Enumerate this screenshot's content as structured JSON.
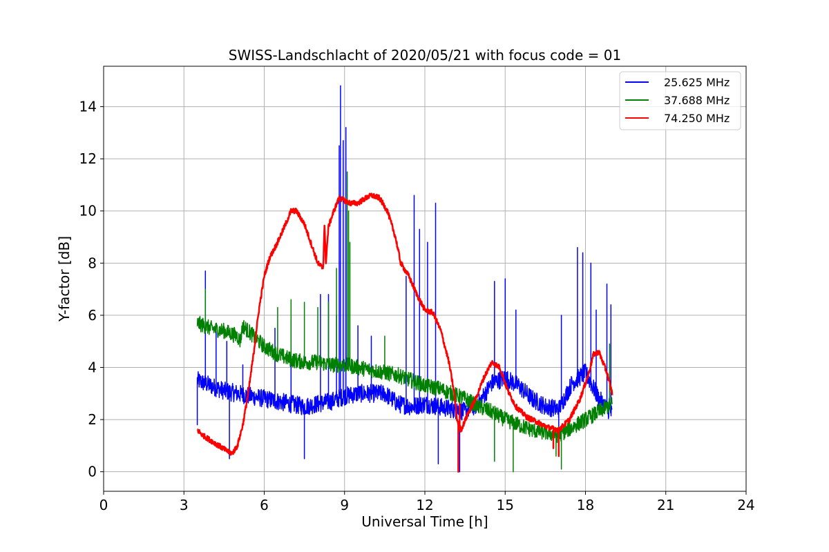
{
  "chart_data": {
    "type": "line",
    "title": "SWISS-Landschlacht of 2020/05/21 with focus code = 01",
    "xlabel": "Universal Time [h]",
    "ylabel": "Y-factor [dB]",
    "xlim": [
      0,
      24
    ],
    "ylim": [
      -0.75,
      15.55
    ],
    "x_ticks": [
      0,
      3,
      6,
      9,
      12,
      15,
      18,
      21,
      24
    ],
    "x_tick_labels": [
      "0",
      "3",
      "6",
      "9",
      "12",
      "15",
      "18",
      "21",
      "24"
    ],
    "y_ticks": [
      0,
      2,
      4,
      6,
      8,
      10,
      12,
      14
    ],
    "y_tick_labels": [
      "0",
      "2",
      "4",
      "6",
      "8",
      "10",
      "12",
      "14"
    ],
    "grid": true,
    "legend_position": "top-right",
    "series": [
      {
        "name": "25.625 MHz",
        "color": "#0000ff",
        "x": [
          3.5,
          4,
          4.5,
          5,
          5.5,
          6,
          6.5,
          7,
          7.5,
          8,
          8.5,
          9,
          9.5,
          10,
          10.5,
          11,
          11.5,
          12,
          12.5,
          13,
          13.5,
          14,
          14.5,
          15,
          15.5,
          16,
          16.5,
          17,
          17.5,
          18,
          18.5,
          19
        ],
        "y": [
          3.5,
          3.3,
          3.1,
          3.0,
          2.9,
          2.8,
          2.7,
          2.6,
          2.5,
          2.6,
          2.7,
          2.9,
          3.0,
          3.0,
          3.0,
          2.6,
          2.5,
          2.6,
          2.5,
          2.4,
          2.3,
          2.6,
          3.4,
          3.6,
          3.3,
          2.8,
          2.5,
          2.4,
          3.4,
          3.8,
          2.8,
          2.2
        ],
        "spikes": [
          [
            3.5,
            1.8
          ],
          [
            3.8,
            7.7
          ],
          [
            4.2,
            5.6
          ],
          [
            4.6,
            5.0
          ],
          [
            4.7,
            0.5
          ],
          [
            5.2,
            4.1
          ],
          [
            6.4,
            5.5
          ],
          [
            7.0,
            5.8
          ],
          [
            7.5,
            0.5
          ],
          [
            8.1,
            6.8
          ],
          [
            8.4,
            6.8
          ],
          [
            8.7,
            6.0
          ],
          [
            8.8,
            12.5
          ],
          [
            8.85,
            14.8
          ],
          [
            8.95,
            12.7
          ],
          [
            9.05,
            13.2
          ],
          [
            9.5,
            5.6
          ],
          [
            10.0,
            5.2
          ],
          [
            11.3,
            7.5
          ],
          [
            11.6,
            10.6
          ],
          [
            11.8,
            9.3
          ],
          [
            12.1,
            8.8
          ],
          [
            12.4,
            10.3
          ],
          [
            12.5,
            0.3
          ],
          [
            13.2,
            2.6
          ],
          [
            13.3,
            0.0
          ],
          [
            14.6,
            7.3
          ],
          [
            15.0,
            7.4
          ],
          [
            15.4,
            6.2
          ],
          [
            17.0,
            0.8
          ],
          [
            17.1,
            6.0
          ],
          [
            17.7,
            8.6
          ],
          [
            17.9,
            8.4
          ],
          [
            18.2,
            8.0
          ],
          [
            18.4,
            6.2
          ],
          [
            18.8,
            7.2
          ],
          [
            18.95,
            6.4
          ]
        ]
      },
      {
        "name": "37.688 MHz",
        "color": "#008000",
        "x": [
          3.5,
          4,
          4.5,
          5,
          5.1,
          5.2,
          5.5,
          6,
          6.5,
          7,
          7.5,
          8,
          8.5,
          9,
          9.5,
          10,
          10.5,
          11,
          11.5,
          12,
          12.5,
          13,
          13.5,
          14,
          14.5,
          15,
          15.5,
          16,
          16.5,
          17,
          17.5,
          18,
          18.5,
          19
        ],
        "y": [
          5.7,
          5.5,
          5.4,
          5.2,
          5.0,
          5.6,
          5.3,
          4.8,
          4.5,
          4.3,
          4.2,
          4.2,
          4.1,
          4.1,
          4.0,
          3.9,
          3.8,
          3.7,
          3.5,
          3.3,
          3.2,
          3.0,
          2.8,
          2.5,
          2.3,
          2.0,
          1.8,
          1.6,
          1.5,
          1.4,
          1.7,
          2.0,
          2.3,
          2.6
        ],
        "spikes": [
          [
            3.8,
            7.0
          ],
          [
            6.5,
            6.3
          ],
          [
            7.0,
            6.6
          ],
          [
            7.5,
            6.5
          ],
          [
            8.0,
            6.3
          ],
          [
            8.4,
            6.5
          ],
          [
            8.7,
            7.8
          ],
          [
            9.1,
            11.5
          ],
          [
            9.15,
            10.0
          ],
          [
            9.2,
            8.8
          ],
          [
            10.5,
            5.2
          ],
          [
            14.6,
            0.4
          ],
          [
            15.3,
            0.0
          ],
          [
            16.9,
            0.6
          ],
          [
            17.1,
            0.1
          ],
          [
            18.9,
            4.9
          ]
        ]
      },
      {
        "name": "74.250 MHz",
        "color": "#ff0000",
        "x": [
          3.5,
          3.7,
          4.0,
          4.3,
          4.6,
          4.8,
          5.0,
          5.2,
          5.4,
          5.6,
          5.8,
          6.0,
          6.2,
          6.5,
          6.8,
          7.0,
          7.2,
          7.5,
          7.8,
          8.0,
          8.2,
          8.25,
          8.3,
          8.4,
          8.6,
          8.8,
          9.0,
          9.2,
          9.5,
          9.8,
          10.0,
          10.3,
          10.6,
          10.9,
          11.1,
          11.4,
          11.7,
          12.0,
          12.3,
          12.6,
          12.9,
          13.1,
          13.2,
          13.35,
          13.6,
          13.9,
          14.2,
          14.5,
          14.8,
          15.1,
          15.4,
          15.8,
          16.2,
          16.6,
          17.0,
          17.4,
          17.8,
          18.1,
          18.3,
          18.5,
          18.8,
          19.0
        ],
        "y": [
          1.6,
          1.4,
          1.2,
          1.0,
          0.8,
          0.7,
          1.0,
          1.8,
          3.0,
          4.5,
          6.2,
          7.5,
          8.2,
          8.8,
          9.5,
          10.0,
          10.0,
          9.5,
          8.6,
          8.0,
          7.8,
          9.5,
          8.0,
          9.4,
          10.0,
          10.5,
          10.4,
          10.3,
          10.3,
          10.5,
          10.6,
          10.5,
          10.0,
          9.0,
          8.0,
          7.5,
          6.8,
          6.2,
          6.1,
          5.4,
          4.2,
          3.0,
          2.0,
          1.6,
          2.2,
          2.8,
          3.6,
          4.2,
          4.0,
          3.1,
          2.5,
          2.1,
          1.9,
          1.7,
          1.6,
          2.0,
          2.8,
          3.7,
          4.5,
          4.6,
          3.8,
          3.0
        ],
        "spikes": [
          [
            13.25,
            0.0
          ],
          [
            13.3,
            2.6
          ],
          [
            16.8,
            0.9
          ],
          [
            17.0,
            0.6
          ]
        ]
      }
    ]
  }
}
